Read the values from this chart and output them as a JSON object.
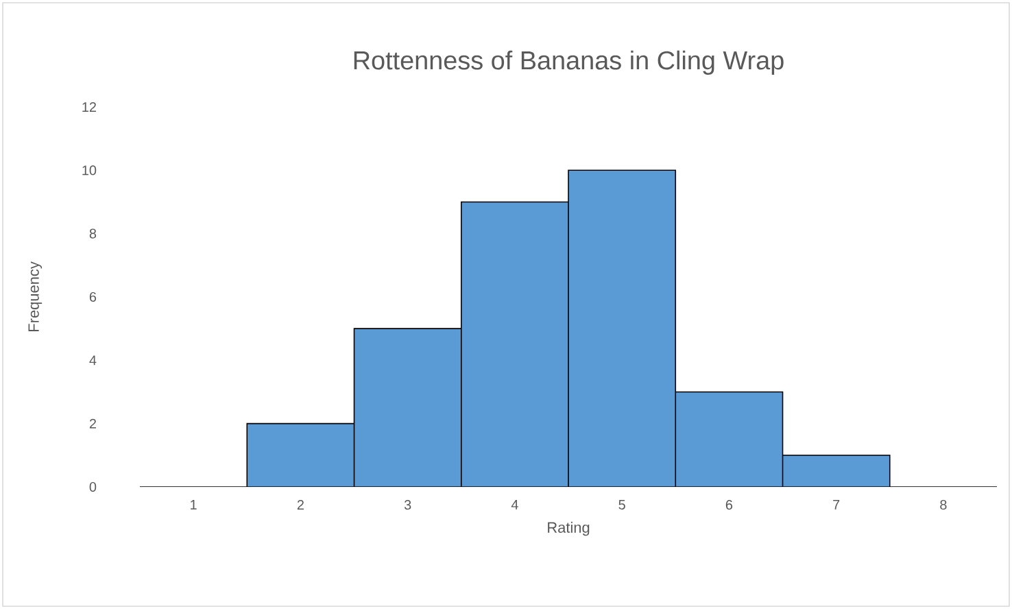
{
  "chart_data": {
    "type": "bar",
    "title": "Rottenness of Bananas in Cling Wrap",
    "xlabel": "Rating",
    "ylabel": "Frequency",
    "categories": [
      "1",
      "2",
      "3",
      "4",
      "5",
      "6",
      "7",
      "8"
    ],
    "values": [
      0,
      2,
      5,
      9,
      10,
      3,
      1,
      0
    ],
    "color": "#5b9bd5",
    "ylim": [
      0,
      12
    ],
    "yticks": [
      0,
      2,
      4,
      6,
      8,
      10,
      12
    ]
  }
}
